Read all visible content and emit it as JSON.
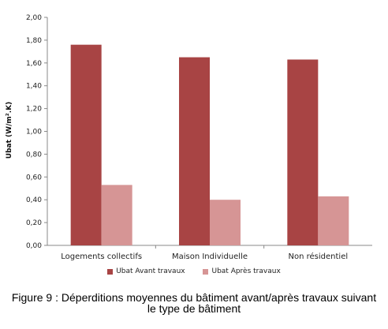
{
  "chart_data": {
    "type": "bar",
    "categories": [
      "Logements collectifs",
      "Maison Individuelle",
      "Non résidentiel"
    ],
    "series": [
      {
        "name": "Ubat Avant travaux",
        "values": [
          1.76,
          1.65,
          1.63
        ],
        "color": "#a84444"
      },
      {
        "name": "Ubat Après travaux",
        "values": [
          0.53,
          0.4,
          0.43
        ],
        "color": "#d69595"
      }
    ],
    "ylabel": "Ubat (W/m².K)",
    "ylim": [
      0,
      2
    ],
    "yticks": [
      "0,00",
      "0,20",
      "0,40",
      "0,60",
      "0,80",
      "1,00",
      "1,20",
      "1,40",
      "1,60",
      "1,80",
      "2,00"
    ],
    "legend_position": "bottom",
    "grid": false
  },
  "caption": {
    "line1": "Figure 9 : Déperditions moyennes du bâtiment avant/après travaux suivant",
    "line2": "le type de bâtiment"
  }
}
